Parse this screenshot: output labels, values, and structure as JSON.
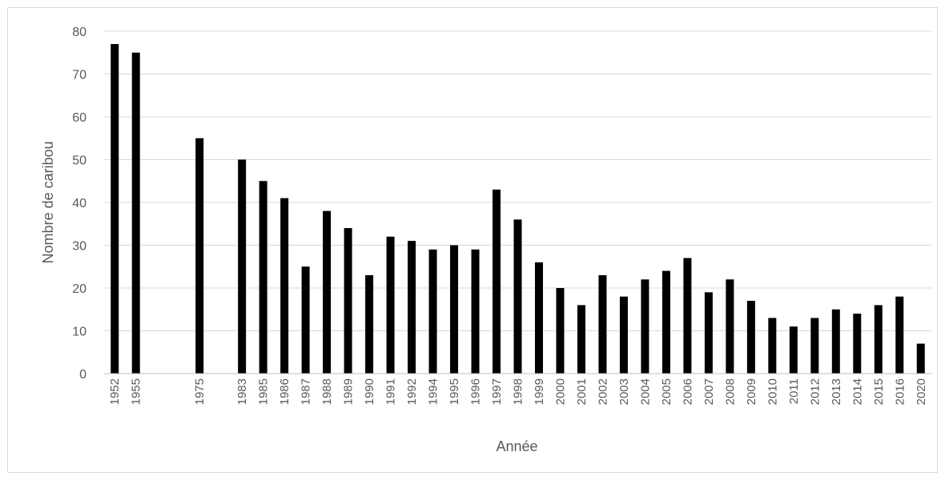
{
  "chart_data": {
    "type": "bar",
    "xlabel": "Année",
    "ylabel": "Nombre de caribou",
    "ylim": [
      0,
      80
    ],
    "yticks": [
      0,
      10,
      20,
      30,
      40,
      50,
      60,
      70,
      80
    ],
    "grid": true,
    "bar_color": "#000000",
    "categories": [
      "1952",
      "1955",
      "",
      "",
      "1975",
      "",
      "1983",
      "1985",
      "1986",
      "1987",
      "1988",
      "1989",
      "1990",
      "1991",
      "1992",
      "1994",
      "1995",
      "1996",
      "1997",
      "1998",
      "1999",
      "2000",
      "2001",
      "2002",
      "2003",
      "2004",
      "2005",
      "2006",
      "2007",
      "2008",
      "2009",
      "2010",
      "2011",
      "2012",
      "2013",
      "2014",
      "2015",
      "2016",
      "2020"
    ],
    "values": [
      77,
      75,
      null,
      null,
      55,
      null,
      50,
      45,
      41,
      25,
      38,
      34,
      23,
      32,
      31,
      29,
      30,
      29,
      43,
      36,
      26,
      20,
      16,
      23,
      18,
      22,
      24,
      27,
      19,
      22,
      17,
      13,
      11,
      13,
      15,
      14,
      16,
      18,
      7
    ]
  }
}
